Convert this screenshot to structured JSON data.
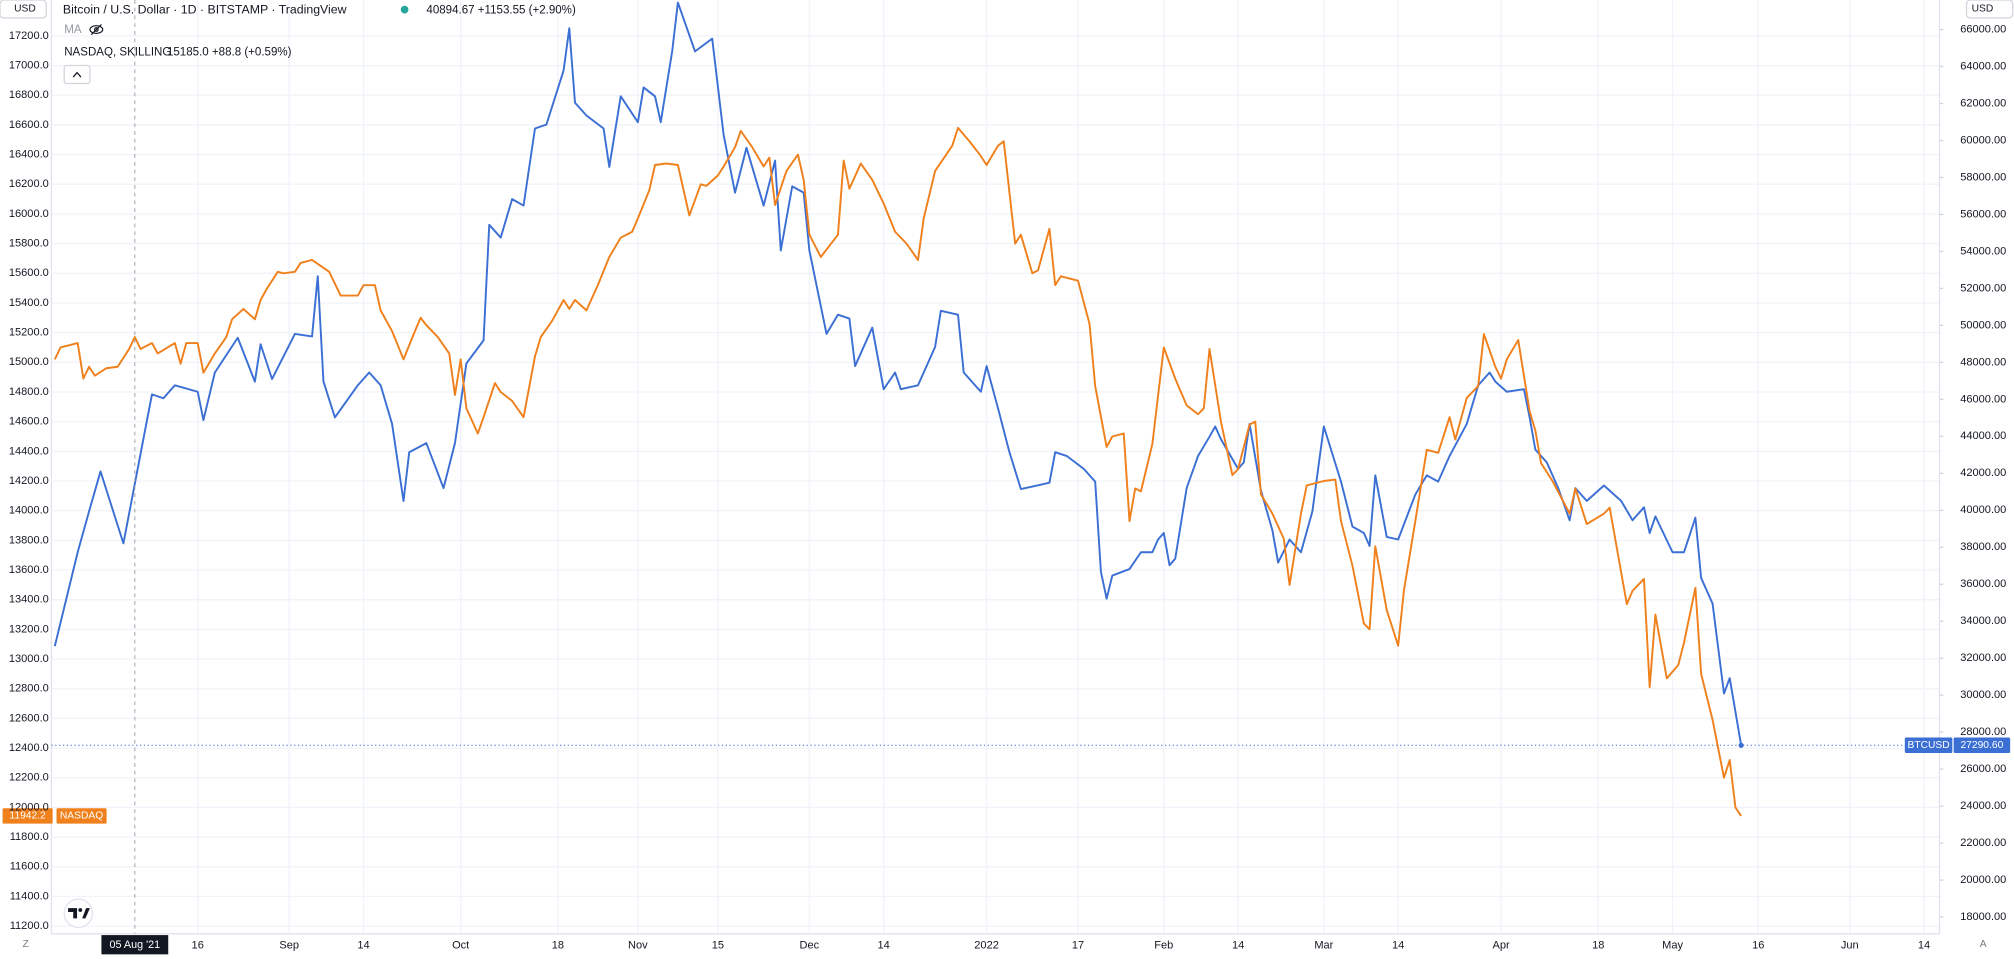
{
  "chart_data": {
    "type": "line",
    "title": "Bitcoin / U.S. Dollar · 1D · BITSTAMP · TradingView",
    "title_value": "40894.67 +1153.55 (+2.90%)",
    "indicator": "MA",
    "subtitle": "NASDAQ, SKILLING",
    "subtitle_value": "15185.0 +88.8 (+0.59%)",
    "currency": "USD",
    "corner_labels": [
      "Z",
      "A"
    ],
    "grid": true,
    "crosshair": {
      "value": 4,
      "label": "05 Aug '21"
    },
    "xlim": [
      -10.6,
      319.7
    ],
    "xticks": [
      {
        "value": 15,
        "label": "16"
      },
      {
        "value": 31,
        "label": "Sep"
      },
      {
        "value": 44,
        "label": "14"
      },
      {
        "value": 61,
        "label": "Oct"
      },
      {
        "value": 78,
        "label": "18"
      },
      {
        "value": 92,
        "label": "Nov"
      },
      {
        "value": 106,
        "label": "15"
      },
      {
        "value": 122,
        "label": "Dec"
      },
      {
        "value": 135,
        "label": "14"
      },
      {
        "value": 153,
        "label": "2022"
      },
      {
        "value": 169,
        "label": "17"
      },
      {
        "value": 184,
        "label": "Feb"
      },
      {
        "value": 197,
        "label": "14"
      },
      {
        "value": 212,
        "label": "Mar"
      },
      {
        "value": 225,
        "label": "14"
      },
      {
        "value": 243,
        "label": "Apr"
      },
      {
        "value": 260,
        "label": "18"
      },
      {
        "value": 273,
        "label": "May"
      },
      {
        "value": 288,
        "label": "16"
      },
      {
        "value": 304,
        "label": "Jun"
      },
      {
        "value": 317,
        "label": "14"
      }
    ],
    "ylim": [
      11148,
      17442
    ],
    "yticks": [
      {
        "value": 11200,
        "label": "11200.0"
      },
      {
        "value": 11400,
        "label": "11400.0"
      },
      {
        "value": 11600,
        "label": "11600.0"
      },
      {
        "value": 11800,
        "label": "11800.0"
      },
      {
        "value": 12000,
        "label": "12000.0"
      },
      {
        "value": 12200,
        "label": "12200.0"
      },
      {
        "value": 12400,
        "label": "12400.0"
      },
      {
        "value": 12600,
        "label": "12600.0"
      },
      {
        "value": 12800,
        "label": "12800.0"
      },
      {
        "value": 13000,
        "label": "13000.0"
      },
      {
        "value": 13200,
        "label": "13200.0"
      },
      {
        "value": 13400,
        "label": "13400.0"
      },
      {
        "value": 13600,
        "label": "13600.0"
      },
      {
        "value": 13800,
        "label": "13800.0"
      },
      {
        "value": 14000,
        "label": "14000.0"
      },
      {
        "value": 14200,
        "label": "14200.0"
      },
      {
        "value": 14400,
        "label": "14400.0"
      },
      {
        "value": 14600,
        "label": "14600.0"
      },
      {
        "value": 14800,
        "label": "14800.0"
      },
      {
        "value": 15000,
        "label": "15000.0"
      },
      {
        "value": 15200,
        "label": "15200.0"
      },
      {
        "value": 15400,
        "label": "15400.0"
      },
      {
        "value": 15600,
        "label": "15600.0"
      },
      {
        "value": 15800,
        "label": "15800.0"
      },
      {
        "value": 16000,
        "label": "16000.0"
      },
      {
        "value": 16200,
        "label": "16200.0"
      },
      {
        "value": 16400,
        "label": "16400.0"
      },
      {
        "value": 16600,
        "label": "16600.0"
      },
      {
        "value": 16800,
        "label": "16800.0"
      },
      {
        "value": 17000,
        "label": "17000.0"
      },
      {
        "value": 17200,
        "label": "17200.0"
      }
    ],
    "y2lim": [
      17093,
      67598
    ],
    "y2ticks": [
      {
        "value": 18000,
        "label": "18000.00"
      },
      {
        "value": 20000,
        "label": "20000.00"
      },
      {
        "value": 22000,
        "label": "22000.00"
      },
      {
        "value": 24000,
        "label": "24000.00"
      },
      {
        "value": 26000,
        "label": "26000.00"
      },
      {
        "value": 28000,
        "label": "28000.00"
      },
      {
        "value": 30000,
        "label": "30000.00"
      },
      {
        "value": 32000,
        "label": "32000.00"
      },
      {
        "value": 34000,
        "label": "34000.00"
      },
      {
        "value": 36000,
        "label": "36000.00"
      },
      {
        "value": 38000,
        "label": "38000.00"
      },
      {
        "value": 40000,
        "label": "40000.00"
      },
      {
        "value": 42000,
        "label": "42000.00"
      },
      {
        "value": 44000,
        "label": "44000.00"
      },
      {
        "value": 46000,
        "label": "46000.00"
      },
      {
        "value": 48000,
        "label": "48000.00"
      },
      {
        "value": 50000,
        "label": "50000.00"
      },
      {
        "value": 52000,
        "label": "52000.00"
      },
      {
        "value": 54000,
        "label": "54000.00"
      },
      {
        "value": 56000,
        "label": "56000.00"
      },
      {
        "value": 58000,
        "label": "58000.00"
      },
      {
        "value": 60000,
        "label": "60000.00"
      },
      {
        "value": 62000,
        "label": "62000.00"
      },
      {
        "value": 64000,
        "label": "64000.00"
      },
      {
        "value": 66000,
        "label": "66000.00"
      }
    ],
    "series": [
      {
        "name": "BTCUSD",
        "color": "#3b6fd4",
        "axis": "y2",
        "last_label": "27290.60",
        "x": [
          -10,
          -6,
          -4,
          -2,
          2,
          6,
          7,
          9,
          11,
          15,
          16,
          18,
          22,
          25,
          26,
          28,
          32,
          35,
          36,
          37,
          39,
          43,
          45,
          47,
          49,
          51,
          52,
          55,
          58,
          60,
          62,
          65,
          66,
          68,
          70,
          72,
          74,
          76,
          79,
          80,
          81,
          83,
          86,
          87,
          89,
          92,
          93,
          95,
          96,
          98,
          99,
          102,
          105,
          107,
          109,
          111,
          114,
          116,
          117,
          119,
          121,
          122,
          125,
          127,
          129,
          130,
          133,
          135,
          137,
          138,
          141,
          144,
          145,
          148,
          149,
          152,
          153,
          155,
          157,
          159,
          162,
          164,
          165,
          167,
          170,
          172,
          173,
          174,
          175,
          178,
          180,
          182,
          183,
          184,
          185,
          186,
          188,
          190,
          192,
          193,
          194,
          197,
          198,
          199,
          201,
          203,
          204,
          206,
          208,
          210,
          212,
          215,
          217,
          219,
          220,
          221,
          223,
          225,
          228,
          230,
          232,
          234,
          237,
          239,
          241,
          242,
          244,
          247,
          248,
          249,
          251,
          253,
          255,
          256,
          258,
          261,
          264,
          266,
          268,
          269,
          270,
          273,
          275,
          277,
          278,
          280,
          282,
          283,
          285
        ],
        "values": [
          32650,
          37730,
          39950,
          42100,
          38210,
          44670,
          46270,
          46060,
          46760,
          46410,
          44880,
          47450,
          49330,
          46960,
          48980,
          47100,
          49540,
          49400,
          52660,
          46960,
          45020,
          46760,
          47450,
          46760,
          44670,
          40500,
          43140,
          43630,
          41200,
          43630,
          47940,
          49190,
          55440,
          54750,
          56830,
          56480,
          60650,
          60860,
          63780,
          66070,
          62040,
          61350,
          60650,
          58570,
          62390,
          60990,
          62870,
          62390,
          60990,
          64820,
          67460,
          64820,
          65510,
          60300,
          57180,
          59610,
          56480,
          58910,
          54050,
          57520,
          57180,
          54050,
          49540,
          50580,
          50370,
          47800,
          49880,
          46550,
          47450,
          46550,
          46760,
          48840,
          50790,
          50580,
          47450,
          46410,
          47800,
          45520,
          43140,
          41150,
          41350,
          41490,
          43140,
          42940,
          42240,
          41550,
          36680,
          35220,
          36470,
          36820,
          37730,
          37730,
          38420,
          38770,
          37030,
          37380,
          41200,
          42940,
          43980,
          44530,
          43840,
          42240,
          42590,
          44670,
          41060,
          38910,
          37170,
          38420,
          37730,
          39950,
          44530,
          41550,
          39120,
          38770,
          38070,
          41890,
          38560,
          38420,
          40850,
          41890,
          41550,
          42940,
          44670,
          46760,
          47450,
          46960,
          46410,
          46550,
          45020,
          43280,
          42590,
          41200,
          39460,
          41200,
          40510,
          41340,
          40510,
          39460,
          40160,
          38770,
          39670,
          37730,
          37730,
          39600,
          36340,
          34950,
          30090,
          30920,
          27290.6
        ]
      },
      {
        "name": "NASDAQ",
        "color": "#f0801c",
        "last_label": "11942.2",
        "x": [
          -10,
          -9,
          -6,
          -5,
          -4,
          -3,
          -1,
          1,
          3,
          4,
          5,
          7,
          8,
          11,
          12,
          13,
          15,
          16,
          18,
          20,
          21,
          23,
          25,
          26,
          27,
          29,
          30,
          32,
          33,
          35,
          38,
          40,
          43,
          44,
          46,
          47,
          49,
          51,
          53,
          54,
          55,
          57,
          59,
          60,
          61,
          62,
          64,
          65,
          67,
          68,
          70,
          72,
          74,
          75,
          77,
          79,
          80,
          81,
          83,
          85,
          87,
          89,
          91,
          92,
          94,
          95,
          97,
          99,
          101,
          103,
          104,
          106,
          107,
          109,
          110,
          112,
          114,
          115,
          116,
          118,
          120,
          121,
          122,
          124,
          127,
          128,
          129,
          131,
          133,
          135,
          137,
          139,
          141,
          142,
          144,
          147,
          148,
          150,
          152,
          153,
          155,
          156,
          158,
          159,
          161,
          162,
          164,
          165,
          166,
          169,
          171,
          172,
          174,
          175,
          177,
          178,
          179,
          180,
          182,
          184,
          186,
          188,
          190,
          191,
          192,
          194,
          196,
          197,
          199,
          200,
          201,
          203,
          205,
          206,
          208,
          209,
          212,
          214,
          215,
          217,
          219,
          220,
          221,
          223,
          225,
          226,
          228,
          230,
          232,
          234,
          235,
          237,
          239,
          240,
          242,
          243,
          244,
          246,
          248,
          249,
          250,
          252,
          255,
          256,
          258,
          261,
          262,
          265,
          266,
          268,
          269,
          270,
          272,
          274,
          275,
          277,
          278,
          280,
          282,
          283,
          284,
          285
        ],
        "values": [
          15020,
          15100,
          15130,
          14890,
          14970,
          14910,
          14960,
          14970,
          15090,
          15170,
          15090,
          15130,
          15060,
          15130,
          14990,
          15130,
          15130,
          14930,
          15060,
          15170,
          15290,
          15360,
          15290,
          15420,
          15490,
          15610,
          15600,
          15610,
          15670,
          15690,
          15610,
          15450,
          15450,
          15520,
          15520,
          15350,
          15210,
          15020,
          15210,
          15300,
          15250,
          15170,
          15060,
          14780,
          15020,
          14690,
          14520,
          14630,
          14860,
          14800,
          14740,
          14630,
          15040,
          15170,
          15280,
          15420,
          15360,
          15420,
          15350,
          15520,
          15710,
          15840,
          15880,
          15970,
          16160,
          16330,
          16340,
          16330,
          15990,
          16200,
          16190,
          16260,
          16320,
          16450,
          16560,
          16450,
          16320,
          16380,
          16060,
          16290,
          16400,
          16230,
          15860,
          15710,
          15860,
          16360,
          16170,
          16340,
          16230,
          16070,
          15880,
          15800,
          15690,
          15970,
          16290,
          16460,
          16580,
          16490,
          16390,
          16330,
          16460,
          16490,
          15800,
          15860,
          15600,
          15620,
          15900,
          15520,
          15580,
          15550,
          15260,
          14840,
          14430,
          14500,
          14520,
          13930,
          14150,
          14130,
          14450,
          15100,
          14890,
          14710,
          14650,
          14690,
          15090,
          14600,
          14240,
          14280,
          14580,
          14600,
          14110,
          13980,
          13810,
          13500,
          13980,
          14170,
          14200,
          14210,
          13930,
          13630,
          13240,
          13200,
          13760,
          13330,
          13090,
          13460,
          13930,
          14410,
          14390,
          14630,
          14480,
          14760,
          14840,
          15190,
          14970,
          14890,
          15020,
          15150,
          14670,
          14540,
          14320,
          14200,
          13980,
          14150,
          13910,
          13980,
          14020,
          13370,
          13460,
          13540,
          12810,
          13300,
          12870,
          12960,
          13110,
          13480,
          12900,
          12590,
          12200,
          12320,
          12000,
          11942.2
        ]
      }
    ]
  }
}
